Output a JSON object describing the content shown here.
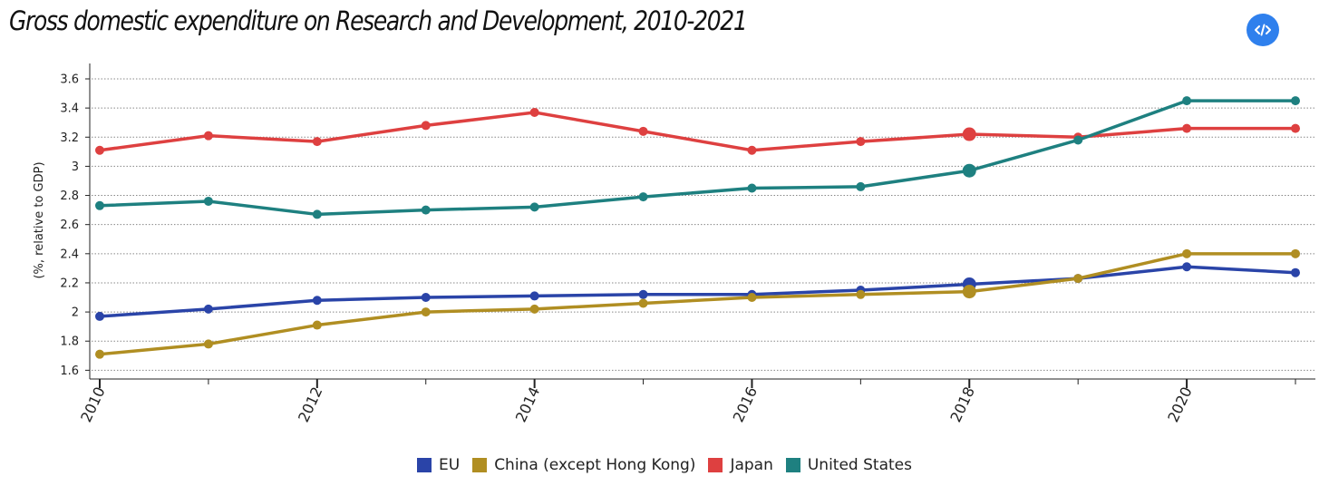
{
  "header": {
    "title": "Gross domestic expenditure on Research and Development, 2010-2021"
  },
  "toolbar": {
    "embed_icon": "code-icon",
    "embed_color": "#2f80ed"
  },
  "chart_data": {
    "type": "line",
    "title": "Gross domestic expenditure on Research and Development, 2010-2021",
    "xlabel": "",
    "ylabel": "(%, relative to GDP)",
    "x": [
      2010,
      2011,
      2012,
      2013,
      2014,
      2015,
      2016,
      2017,
      2018,
      2019,
      2020,
      2021
    ],
    "xticks": [
      "2010",
      "2012",
      "2014",
      "2016",
      "2018",
      "2020"
    ],
    "yticks": [
      "1.6",
      "1.8",
      "2",
      "2.2",
      "2.4",
      "2.6",
      "2.8",
      "3",
      "3.2",
      "3.4",
      "3.6"
    ],
    "xlim": [
      2010,
      2021.2
    ],
    "ylim": [
      1.54,
      3.7
    ],
    "grid": "horizontal dotted",
    "legend_position": "bottom-center",
    "highlighted_x": 2018,
    "series": [
      {
        "name": "EU",
        "color": "#2a44a8",
        "values": [
          1.97,
          2.02,
          2.08,
          2.1,
          2.11,
          2.12,
          2.12,
          2.15,
          2.19,
          2.23,
          2.31,
          2.27
        ]
      },
      {
        "name": "China (except Hong Kong)",
        "color": "#b08e22",
        "values": [
          1.71,
          1.78,
          1.91,
          2.0,
          2.02,
          2.06,
          2.1,
          2.12,
          2.14,
          2.23,
          2.4,
          2.4
        ]
      },
      {
        "name": "Japan",
        "color": "#de4040",
        "values": [
          3.11,
          3.21,
          3.17,
          3.28,
          3.37,
          3.24,
          3.11,
          3.17,
          3.22,
          3.2,
          3.26,
          3.26
        ]
      },
      {
        "name": "United States",
        "color": "#1e8080",
        "values": [
          2.73,
          2.76,
          2.67,
          2.7,
          2.72,
          2.79,
          2.85,
          2.86,
          2.97,
          3.18,
          3.45,
          3.45
        ]
      }
    ]
  }
}
